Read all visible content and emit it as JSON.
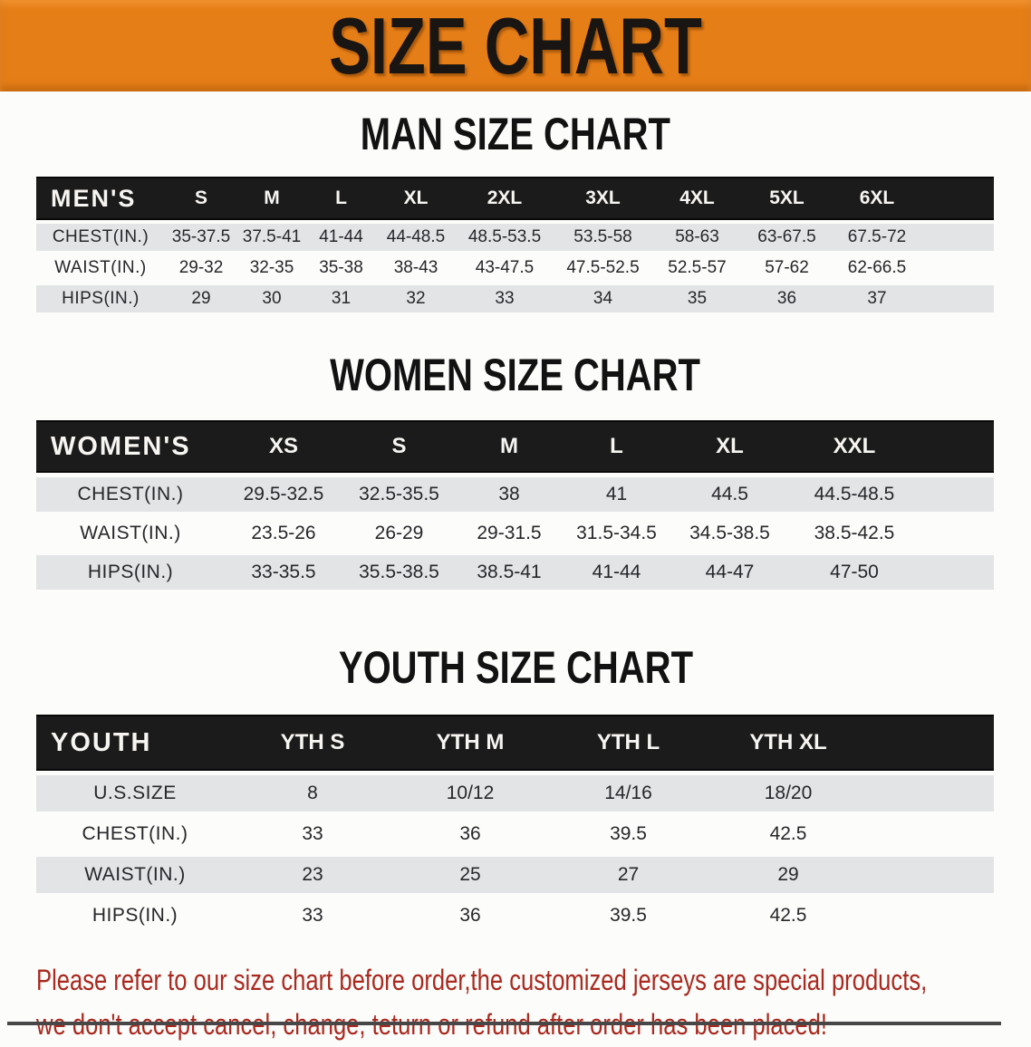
{
  "banner": {
    "title": "SIZE CHART",
    "bg_color": "#E67E17",
    "text_color": "#181512"
  },
  "sections": [
    {
      "title": "MAN SIZE CHART",
      "header_label": "MEN'S",
      "columns": [
        "S",
        "M",
        "L",
        "XL",
        "2XL",
        "3XL",
        "4XL",
        "5XL",
        "6XL"
      ],
      "rows": [
        {
          "label": "CHEST(IN.)",
          "values": [
            "35-37.5",
            "37.5-41",
            "41-44",
            "44-48.5",
            "48.5-53.5",
            "53.5-58",
            "58-63",
            "63-67.5",
            "67.5-72"
          ]
        },
        {
          "label": "WAIST(IN.)",
          "values": [
            "29-32",
            "32-35",
            "35-38",
            "38-43",
            "43-47.5",
            "47.5-52.5",
            "52.5-57",
            "57-62",
            "62-66.5"
          ]
        },
        {
          "label": "HIPS(IN.)",
          "values": [
            "29",
            "30",
            "31",
            "32",
            "33",
            "34",
            "35",
            "36",
            "37"
          ]
        }
      ]
    },
    {
      "title": "WOMEN SIZE CHART",
      "header_label": "WOMEN'S",
      "columns": [
        "XS",
        "S",
        "M",
        "L",
        "XL",
        "XXL"
      ],
      "rows": [
        {
          "label": "CHEST(IN.)",
          "values": [
            "29.5-32.5",
            "32.5-35.5",
            "38",
            "41",
            "44.5",
            "44.5-48.5"
          ]
        },
        {
          "label": "WAIST(IN.)",
          "values": [
            "23.5-26",
            "26-29",
            "29-31.5",
            "31.5-34.5",
            "34.5-38.5",
            "38.5-42.5"
          ]
        },
        {
          "label": "HIPS(IN.)",
          "values": [
            "33-35.5",
            "35.5-38.5",
            "38.5-41",
            "41-44",
            "44-47",
            "47-50"
          ]
        }
      ]
    },
    {
      "title": "YOUTH SIZE CHART",
      "header_label": "YOUTH",
      "columns": [
        "YTH S",
        "YTH M",
        "YTH L",
        "YTH XL"
      ],
      "rows": [
        {
          "label": "U.S.SIZE",
          "values": [
            "8",
            "10/12",
            "14/16",
            "18/20"
          ]
        },
        {
          "label": "CHEST(IN.)",
          "values": [
            "33",
            "36",
            "39.5",
            "42.5"
          ]
        },
        {
          "label": "WAIST(IN.)",
          "values": [
            "23",
            "25",
            "27",
            "29"
          ]
        },
        {
          "label": "HIPS(IN.)",
          "values": [
            "33",
            "36",
            "39.5",
            "42.5"
          ]
        }
      ]
    }
  ],
  "disclaimer": {
    "line1": "Please refer to our size chart before order,the customized jerseys are special products,",
    "line2": "we don't accept cancel, change, teturn or refund after order has been placed!",
    "color": "#A9291F"
  },
  "colors": {
    "accent_orange": "#E67E17",
    "table_header_black": "#1C1B1B",
    "row_gray": "#E3E4E6",
    "disclaimer_red": "#A9291F"
  }
}
